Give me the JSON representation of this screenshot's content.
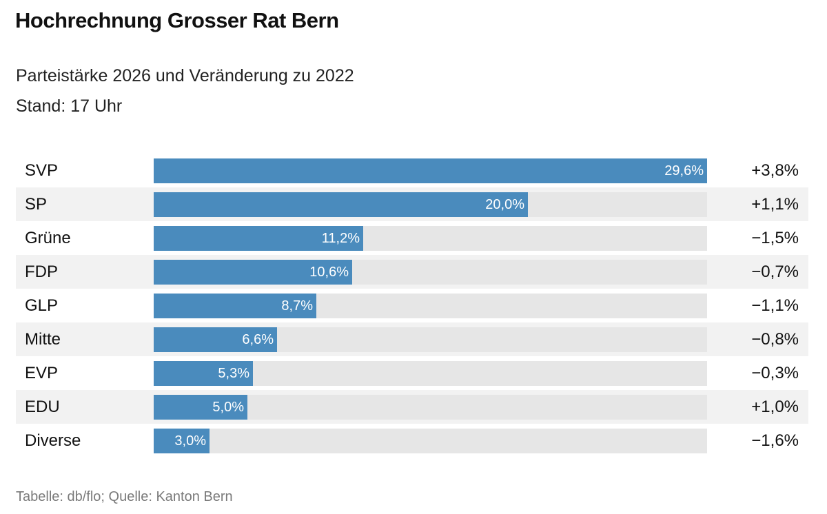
{
  "title": "Hochrechnung Grosser Rat Bern",
  "subtitle": {
    "line1": "Parteistärke 2026 und Veränderung zu 2022",
    "line2": "Stand: 17 Uhr"
  },
  "footer": "Tabelle: db/flo; Quelle: Kanton Bern",
  "colors": {
    "bar": "#4a8bbd",
    "track": "#e6e6e6",
    "row_shade": "#f2f2f2"
  },
  "chart_data": {
    "type": "bar",
    "orientation": "horizontal",
    "value_max": 29.6,
    "categories": [
      "SVP",
      "SP",
      "Grüne",
      "FDP",
      "GLP",
      "Mitte",
      "EVP",
      "EDU",
      "Diverse"
    ],
    "values": [
      29.6,
      20.0,
      11.2,
      10.6,
      8.7,
      6.6,
      5.3,
      5.0,
      3.0
    ],
    "value_labels": [
      "29,6%",
      "20,0%",
      "11,2%",
      "10,6%",
      "8,7%",
      "6,6%",
      "5,3%",
      "5,0%",
      "3,0%"
    ],
    "changes": [
      3.8,
      1.1,
      -1.5,
      -0.7,
      -1.1,
      -0.8,
      -0.3,
      1.0,
      -1.6
    ],
    "change_labels": [
      "+3,8%",
      "+1,1%",
      "−1,5%",
      "−0,7%",
      "−1,1%",
      "−0,8%",
      "−0,3%",
      "+1,0%",
      "−1,6%"
    ]
  }
}
